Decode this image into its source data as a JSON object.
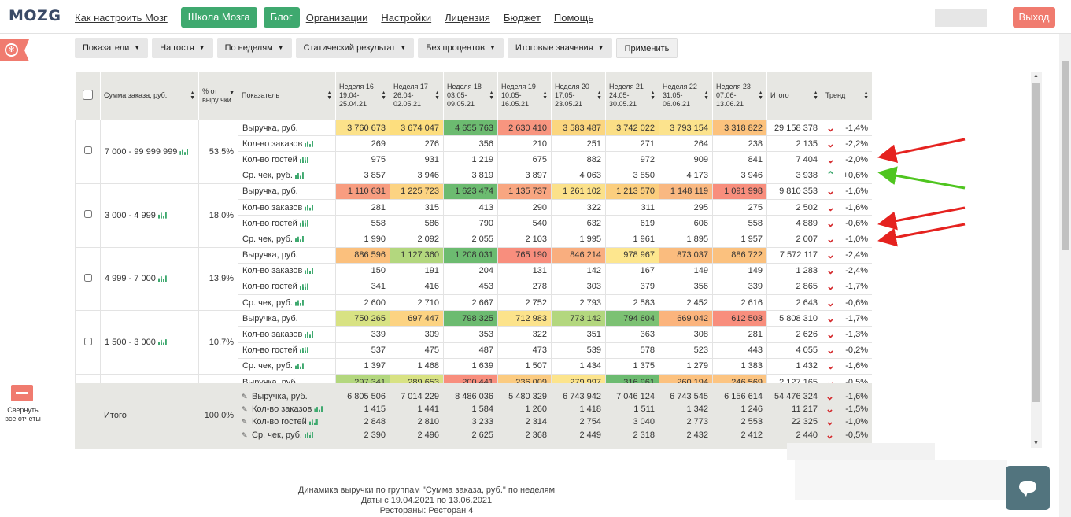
{
  "header": {
    "logo": "MOZG",
    "nav": [
      {
        "label": "Как настроить Мозг",
        "type": "link"
      },
      {
        "label": "Школа Мозга",
        "type": "button"
      },
      {
        "label": "Блог",
        "type": "button"
      },
      {
        "label": "Организации",
        "type": "link"
      },
      {
        "label": "Настройки",
        "type": "link"
      },
      {
        "label": "Лицензия",
        "type": "link"
      },
      {
        "label": "Бюджет",
        "type": "link"
      },
      {
        "label": "Помощь",
        "type": "link"
      }
    ],
    "exit_label": "Выход"
  },
  "sidebar": {
    "collapse_label": "Свернуть все отчеты"
  },
  "filters": [
    "Показатели",
    "На гостя",
    "По неделям",
    "Статический результат",
    "Без процентов",
    "Итоговые значения"
  ],
  "apply_label": "Применить",
  "table": {
    "headers": {
      "group": "Сумма заказа, руб.",
      "pct": "% от выру чки",
      "metric": "Показатель",
      "weeks": [
        "Неделя 16 19.04-25.04.21",
        "Неделя 17 26.04-02.05.21",
        "Неделя 18 03.05-09.05.21",
        "Неделя 19 10.05-16.05.21",
        "Неделя 20 17.05-23.05.21",
        "Неделя 21 24.05-30.05.21",
        "Неделя 22 31.05-06.06.21",
        "Неделя 23 07.06-13.06.21"
      ],
      "total": "Итого",
      "trend": "Тренд"
    },
    "groups": [
      {
        "name": "7 000 - 99 999 999",
        "pct": "53,5%",
        "rows": [
          {
            "metric": "Выручка, руб.",
            "chart": false,
            "values": [
              "3 760 673",
              "3 674 047",
              "4 655 763",
              "2 630 410",
              "3 583 487",
              "3 742 022",
              "3 793 154",
              "3 318 822"
            ],
            "colors": [
              "#fce28a",
              "#fdde7e",
              "#6cbb70",
              "#f8957f",
              "#fbd67f",
              "#fbdf86",
              "#fce38d",
              "#fcc27d"
            ],
            "total": "29 158 378",
            "dir": "down",
            "trend": "-1,4%"
          },
          {
            "metric": "Кол-во заказов",
            "chart": true,
            "values": [
              "269",
              "276",
              "356",
              "210",
              "251",
              "271",
              "264",
              "238"
            ],
            "total": "2 135",
            "dir": "down",
            "trend": "-2,2%"
          },
          {
            "metric": "Кол-во гостей",
            "chart": true,
            "values": [
              "975",
              "931",
              "1 219",
              "675",
              "882",
              "972",
              "909",
              "841"
            ],
            "total": "7 404",
            "dir": "down",
            "trend": "-2,0%"
          },
          {
            "metric": "Ср. чек, руб.",
            "chart": true,
            "values": [
              "3 857",
              "3 946",
              "3 819",
              "3 897",
              "4 063",
              "3 850",
              "4 173",
              "3 946"
            ],
            "total": "3 938",
            "dir": "up",
            "trend": "+0,6%"
          }
        ]
      },
      {
        "name": "3 000 - 4 999",
        "pct": "18,0%",
        "rows": [
          {
            "metric": "Выручка, руб.",
            "chart": false,
            "values": [
              "1 110 631",
              "1 225 723",
              "1 623 474",
              "1 135 737",
              "1 261 102",
              "1 213 570",
              "1 148 119",
              "1 091 998"
            ],
            "colors": [
              "#f89d80",
              "#fcd382",
              "#6cbb70",
              "#f8a681",
              "#fbe18a",
              "#fbce7e",
              "#f9b881",
              "#f88e7d"
            ],
            "total": "9 810 353",
            "dir": "down",
            "trend": "-1,6%"
          },
          {
            "metric": "Кол-во заказов",
            "chart": true,
            "values": [
              "281",
              "315",
              "413",
              "290",
              "322",
              "311",
              "295",
              "275"
            ],
            "total": "2 502",
            "dir": "down",
            "trend": "-1,6%"
          },
          {
            "metric": "Кол-во гостей",
            "chart": true,
            "values": [
              "558",
              "586",
              "790",
              "540",
              "632",
              "619",
              "606",
              "558"
            ],
            "total": "4 889",
            "dir": "down",
            "trend": "-0,6%"
          },
          {
            "metric": "Ср. чек, руб.",
            "chart": true,
            "values": [
              "1 990",
              "2 092",
              "2 055",
              "2 103",
              "1 995",
              "1 961",
              "1 895",
              "1 957"
            ],
            "total": "2 007",
            "dir": "down",
            "trend": "-1,0%"
          }
        ]
      },
      {
        "name": "4 999 - 7 000",
        "pct": "13,9%",
        "rows": [
          {
            "metric": "Выручка, руб.",
            "chart": false,
            "values": [
              "886 596",
              "1 127 360",
              "1 208 031",
              "765 190",
              "846 214",
              "978 967",
              "873 037",
              "886 722"
            ],
            "colors": [
              "#fbc07d",
              "#b3d77e",
              "#6cbb70",
              "#f88e7d",
              "#f9ae7f",
              "#fde68e",
              "#fabc7e",
              "#fbc17e"
            ],
            "total": "7 572 117",
            "dir": "down",
            "trend": "-2,4%"
          },
          {
            "metric": "Кол-во заказов",
            "chart": true,
            "values": [
              "150",
              "191",
              "204",
              "131",
              "142",
              "167",
              "149",
              "149"
            ],
            "total": "1 283",
            "dir": "down",
            "trend": "-2,4%"
          },
          {
            "metric": "Кол-во гостей",
            "chart": true,
            "values": [
              "341",
              "416",
              "453",
              "278",
              "303",
              "379",
              "356",
              "339"
            ],
            "total": "2 865",
            "dir": "down",
            "trend": "-1,7%"
          },
          {
            "metric": "Ср. чек, руб.",
            "chart": true,
            "values": [
              "2 600",
              "2 710",
              "2 667",
              "2 752",
              "2 793",
              "2 583",
              "2 452",
              "2 616"
            ],
            "total": "2 643",
            "dir": "down",
            "trend": "-0,6%"
          }
        ]
      },
      {
        "name": "1 500 - 3 000",
        "pct": "10,7%",
        "rows": [
          {
            "metric": "Выручка, руб.",
            "chart": false,
            "values": [
              "750 265",
              "697 447",
              "798 325",
              "712 983",
              "773 142",
              "794 604",
              "669 042",
              "612 503"
            ],
            "colors": [
              "#d8e283",
              "#fcd382",
              "#6cbb70",
              "#fce38b",
              "#b3d77e",
              "#7cc173",
              "#fbb47d",
              "#f88e7d"
            ],
            "total": "5 808 310",
            "dir": "down",
            "trend": "-1,7%"
          },
          {
            "metric": "Кол-во заказов",
            "chart": true,
            "values": [
              "339",
              "309",
              "353",
              "322",
              "351",
              "363",
              "308",
              "281"
            ],
            "total": "2 626",
            "dir": "down",
            "trend": "-1,3%"
          },
          {
            "metric": "Кол-во гостей",
            "chart": true,
            "values": [
              "537",
              "475",
              "487",
              "473",
              "539",
              "578",
              "523",
              "443"
            ],
            "total": "4 055",
            "dir": "down",
            "trend": "-0,2%"
          },
          {
            "metric": "Ср. чек, руб.",
            "chart": true,
            "values": [
              "1 397",
              "1 468",
              "1 639",
              "1 507",
              "1 434",
              "1 375",
              "1 279",
              "1 383"
            ],
            "total": "1 432",
            "dir": "down",
            "trend": "-1,6%"
          }
        ]
      },
      {
        "name": "",
        "pct": "",
        "rows": [
          {
            "metric": "Выручка, руб.",
            "chart": false,
            "values": [
              "297 341",
              "289 653",
              "200 441",
              "236 009",
              "279 997",
              "316 961",
              "260 194",
              "246 569"
            ],
            "colors": [
              "#b3d77e",
              "#d8e283",
              "#f88e7d",
              "#fbcb80",
              "#fce48c",
              "#6cbb70",
              "#fcc17e",
              "#fcc481"
            ],
            "total": "2 127 165",
            "dir": "down",
            "trend": "-0,5%"
          }
        ]
      }
    ]
  },
  "footer": {
    "label": "Итого",
    "pct": "100,0%",
    "rows": [
      {
        "metric": "Выручка, руб.",
        "chart": false,
        "values": [
          "6 805 506",
          "7 014 229",
          "8 486 036",
          "5 480 329",
          "6 743 942",
          "7 046 124",
          "6 743 545",
          "6 156 614"
        ],
        "total": "54 476 324",
        "dir": "down",
        "trend": "-1,6%"
      },
      {
        "metric": "Кол-во заказов",
        "chart": true,
        "values": [
          "1 415",
          "1 441",
          "1 584",
          "1 260",
          "1 418",
          "1 511",
          "1 342",
          "1 246"
        ],
        "total": "11 217",
        "dir": "down",
        "trend": "-1,5%"
      },
      {
        "metric": "Кол-во гостей",
        "chart": true,
        "values": [
          "2 848",
          "2 810",
          "3 233",
          "2 314",
          "2 754",
          "3 040",
          "2 773",
          "2 553"
        ],
        "total": "22 325",
        "dir": "down",
        "trend": "-1,0%"
      },
      {
        "metric": "Ср. чек, руб.",
        "chart": true,
        "values": [
          "2 390",
          "2 496",
          "2 625",
          "2 368",
          "2 449",
          "2 318",
          "2 432",
          "2 412"
        ],
        "total": "2 440",
        "dir": "down",
        "trend": "-0,5%"
      }
    ]
  },
  "caption": [
    "Динамика выручки по группам \"Сумма заказа, руб.\" по неделям",
    "Даты с 19.04.2021 по 13.06.2021",
    "Рестораны: Ресторан 4"
  ],
  "colors": {
    "accent_green": "#3fa96f",
    "exit_red": "#f07b6f",
    "trend_down": "#d4282b",
    "trend_up": "#3fa96f",
    "annotation_red": "#e5221f",
    "annotation_green": "#4fc51f",
    "chat_bg": "#52747e"
  },
  "icons": {
    "logo_tab": "brain-icon",
    "chart": "bar-chart-icon",
    "brush": "brush-icon",
    "chat": "chat-icon",
    "collapse": "minus-icon"
  }
}
